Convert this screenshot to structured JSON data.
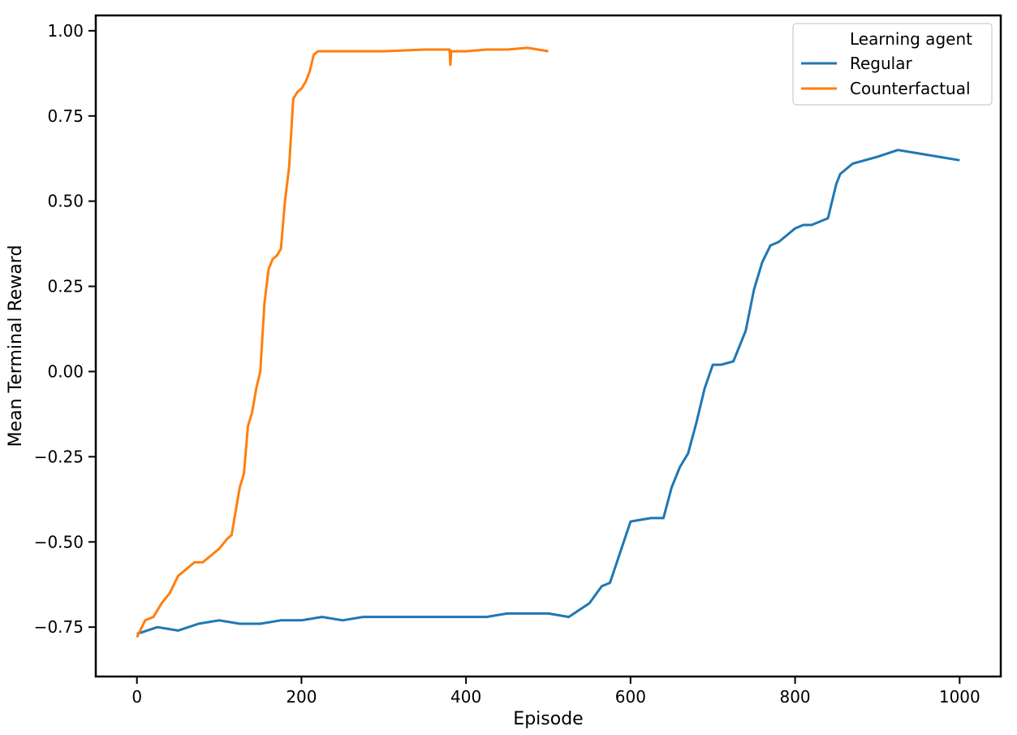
{
  "chart_data": {
    "type": "line",
    "xlabel": "Episode",
    "ylabel": "Mean Terminal Reward",
    "xlim": [
      -50,
      1050
    ],
    "ylim": [
      -0.895,
      1.045
    ],
    "xticks": [
      0,
      200,
      400,
      600,
      800,
      1000
    ],
    "xtick_labels": [
      "0",
      "200",
      "400",
      "600",
      "800",
      "1000"
    ],
    "yticks": [
      -0.75,
      -0.5,
      -0.25,
      0.0,
      0.25,
      0.5,
      0.75,
      1.0
    ],
    "ytick_labels": [
      "−0.75",
      "−0.50",
      "−0.25",
      "0.00",
      "0.25",
      "0.50",
      "0.75",
      "1.00"
    ],
    "grid": false,
    "legend": {
      "title": "Learning agent",
      "placement": "top-right",
      "entries": [
        "Regular",
        "Counterfactual"
      ]
    },
    "series": [
      {
        "name": "Regular",
        "color": "#1f77b4",
        "x": [
          0,
          25,
          50,
          75,
          100,
          125,
          150,
          175,
          200,
          225,
          250,
          275,
          300,
          325,
          350,
          375,
          400,
          425,
          450,
          475,
          500,
          525,
          550,
          565,
          575,
          600,
          625,
          640,
          650,
          660,
          670,
          680,
          690,
          700,
          710,
          725,
          740,
          750,
          760,
          770,
          780,
          790,
          800,
          810,
          820,
          830,
          840,
          850,
          855,
          870,
          900,
          925,
          950,
          975,
          1000
        ],
        "y": [
          -0.77,
          -0.75,
          -0.76,
          -0.74,
          -0.73,
          -0.74,
          -0.74,
          -0.73,
          -0.73,
          -0.72,
          -0.73,
          -0.72,
          -0.72,
          -0.72,
          -0.72,
          -0.72,
          -0.72,
          -0.72,
          -0.71,
          -0.71,
          -0.71,
          -0.72,
          -0.68,
          -0.63,
          -0.62,
          -0.44,
          -0.43,
          -0.43,
          -0.34,
          -0.28,
          -0.24,
          -0.15,
          -0.05,
          0.02,
          0.02,
          0.03,
          0.12,
          0.24,
          0.32,
          0.37,
          0.38,
          0.4,
          0.42,
          0.43,
          0.43,
          0.44,
          0.45,
          0.55,
          0.58,
          0.61,
          0.63,
          0.65,
          0.64,
          0.63,
          0.62
        ]
      },
      {
        "name": "Counterfactual",
        "color": "#ff7f0e",
        "x": [
          0,
          10,
          20,
          30,
          40,
          50,
          60,
          70,
          80,
          90,
          100,
          110,
          115,
          125,
          130,
          135,
          140,
          145,
          150,
          155,
          160,
          165,
          170,
          175,
          180,
          185,
          190,
          195,
          200,
          205,
          210,
          215,
          220,
          250,
          300,
          350,
          380,
          381,
          382,
          400,
          425,
          450,
          475,
          500
        ],
        "y": [
          -0.78,
          -0.73,
          -0.72,
          -0.68,
          -0.65,
          -0.6,
          -0.58,
          -0.56,
          -0.56,
          -0.54,
          -0.52,
          -0.49,
          -0.48,
          -0.34,
          -0.3,
          -0.16,
          -0.12,
          -0.05,
          0.0,
          0.2,
          0.3,
          0.33,
          0.34,
          0.36,
          0.5,
          0.6,
          0.8,
          0.82,
          0.83,
          0.85,
          0.88,
          0.93,
          0.94,
          0.94,
          0.94,
          0.945,
          0.945,
          0.9,
          0.94,
          0.94,
          0.945,
          0.945,
          0.95,
          0.94
        ]
      }
    ]
  }
}
